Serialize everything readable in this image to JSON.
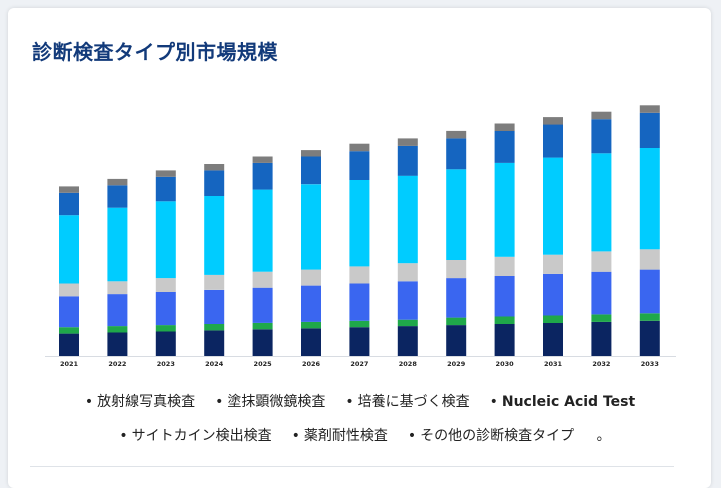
{
  "page": {
    "title": "診断検査タイプ別市場規模",
    "trailing_mark": "。"
  },
  "colors": {
    "card_bg": "#ffffff",
    "title": "#123a7a",
    "axis": "#d8dce2"
  },
  "chart_data": {
    "type": "bar",
    "stacked": true,
    "title": "診断検査タイプ別市場規模",
    "xlabel": "",
    "ylabel": "",
    "grid": false,
    "ylim": [
      0,
      240
    ],
    "categories": [
      "2021",
      "2022",
      "2023",
      "2024",
      "2025",
      "2026",
      "2027",
      "2028",
      "2029",
      "2030",
      "2031",
      "2032",
      "2033"
    ],
    "series": [
      {
        "name": "放射線写真検査",
        "color": "#0b2561",
        "values": [
          21,
          22,
          23,
          24,
          25,
          26,
          27,
          28,
          29,
          30,
          31,
          32,
          33
        ]
      },
      {
        "name": "塗抹顕微鏡検査",
        "color": "#1fa84a",
        "values": [
          6,
          6,
          6,
          6,
          6,
          6,
          6,
          6,
          7,
          7,
          7,
          7,
          7
        ]
      },
      {
        "name": "培養に基づく検査",
        "color": "#3a66f0",
        "values": [
          29,
          30,
          31,
          32,
          33,
          34,
          35,
          36,
          37,
          38,
          39,
          40,
          41
        ]
      },
      {
        "name": "Nucleic Acid Test",
        "color": "#c9c9c9",
        "values": [
          12,
          12,
          13,
          14,
          15,
          15,
          16,
          17,
          17,
          18,
          18,
          19,
          19
        ]
      },
      {
        "name": "サイトカイン検出検査",
        "color": "#00ccff",
        "values": [
          64,
          69,
          72,
          74,
          77,
          80,
          81,
          82,
          85,
          88,
          91,
          92,
          95
        ]
      },
      {
        "name": "薬剤耐性検査",
        "color": "#1565c0",
        "values": [
          21,
          21,
          23,
          24,
          25,
          26,
          27,
          28,
          29,
          30,
          31,
          32,
          33
        ]
      },
      {
        "name": "その他の診断検査タイプ",
        "color": "#7d7d7d",
        "values": [
          6,
          6,
          6,
          6,
          6,
          6,
          7,
          7,
          7,
          7,
          7,
          7,
          7
        ]
      }
    ]
  }
}
